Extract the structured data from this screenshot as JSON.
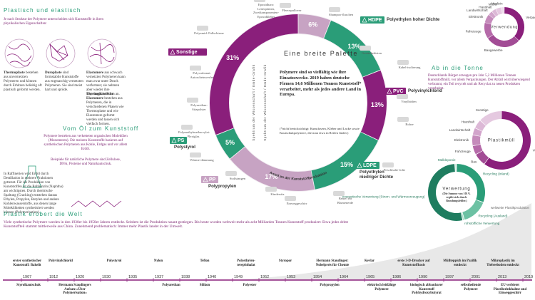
{
  "left": {
    "title": "Plastisch und elastisch",
    "intro": "Je nach Struktur der Polymere unterscheiden sich Kunststoffe in ihren physikalischen Eigenschaften:",
    "types": [
      {
        "name": "Thermoplaste",
        "text": "bestehen aus unvernetzten Polymeren und können durch Erhitzen beliebig oft plastisch geformt werden."
      },
      {
        "name": "Duroplaste",
        "text": "sind formstabile Kunststoffe aus engmaschig vernetzten Polymeren. Sie sind meist hart und spröde."
      },
      {
        "name": "Elastomere",
        "text": "aus schwach vernetzten Polymeren kann man zwar unter Druck verformen; sie nehmen aber wieder ihre ursprüngliche Form an."
      }
    ],
    "extra": {
      "name": "Thermoplastische Elastomere",
      "text": "bestehen aus Polymeren, die in verschiedenen Phasen wie Thermoplaste und wie Elastomere geformt werden und lassen sich vielfach formen."
    }
  },
  "oil": {
    "title": "Vom Öl zum Kunststoff",
    "text": "Polymere bestehen aus verketteten organischen Molekülen (Monomeren). Die meisten Kunststoffe basieren auf synthetischen Polymeren aus Kohle, Erdgas und vor allem Erdöl.",
    "text2": "Beispiele für natürliche Polymere sind Zellulose, DNA, Proteine und Naturkautschuk.",
    "refinery": "In Raffinerien wird Erdöl durch Destillation in mehrere Fraktionen getrennt. Für die Produktion von Kunststoffen ist die Rohbenzin (Naphtha) am wichtigsten. Durch thermische Spaltung (Cracking) entstehen daraus Ethylen, Propylen, Butylen und andere Kohlenwasserstoffe, aus denen lange Molekülketten synthetisiert werden können (Polymerisation)."
  },
  "products": [
    "Epoxidharz: Leiterplatten, Zweikomponenten-Epoxidkleber",
    "Fleecepullover",
    "Shampoo-flaschen",
    "Getränkekisten",
    "Kabel-isolierung",
    "Vinylböden",
    "Rohre",
    "Frischhalte-folie",
    "Beutel für Blumenerde",
    "Einweggeschirr",
    "Kindersitz",
    "Stoßstangen",
    "Wärme-dämmung",
    "Polymethylmethacrylat: Plexiglas",
    "Polyurethan: Sitzpolster",
    "Polycarbonat: Autoscheinwerfer",
    "Polyamid: Fallschirme"
  ],
  "credit": "Spektrum der Wissenschaft / Emde-Grafik",
  "chart_data": [
    {
      "type": "donut",
      "title": "Eine breite Palette",
      "text": "Polymere sind so vielfältig wie ihre Einsatzzwecke. 2019 haben deutsche Firmen 14,6 Millionen Tonnen Kunststoff* verarbeitet, mehr als jedes andere Land in Europa.",
      "footnote": "(*nicht berücksichtigt: Kunstfasern, Kleber und Lacke sowie Kautschukpolymere, die man etwa in Reifen findet.)",
      "axis_label": "Anteil an der Kunststoffproduktion",
      "categories": [
        null,
        "HDPE",
        "PVC",
        "LDPE",
        "PP",
        "PS",
        "Sonstige"
      ],
      "descriptions": [
        null,
        "Polyethylen hoher Dichte",
        "Polyvinylchlorid",
        "Polyethylen niedriger Dichte",
        "Polypropylen",
        "Polystyrol",
        null
      ],
      "values": [
        6,
        13,
        13,
        15,
        17,
        5,
        31
      ],
      "value_labels": [
        "6%",
        "13%",
        "13%",
        "15%",
        "17%",
        "5%",
        "31%"
      ],
      "colors": [
        "#c7a3c3",
        "#2a9d78",
        "#8a1f7b",
        "#2a9d78",
        "#c7a3c3",
        "#2a9d78",
        "#8a1f7b"
      ]
    },
    {
      "type": "donut",
      "title": "Verwendung",
      "categories": [
        "Verpackungen",
        "Baugewerbe",
        "Fahrzeuge",
        "Elektronik",
        "Landwirtschaft",
        "Haushalt",
        "Möbel",
        "Medizin"
      ],
      "values": [
        31,
        24,
        11,
        6,
        3,
        3,
        4,
        2
      ],
      "colors": [
        "#8a1f7b",
        "#a24c95",
        "#b56aa9",
        "#c58bbb",
        "#d2a4cb",
        "#dcb8d6",
        "#e5c9e0",
        "#eedaea"
      ]
    },
    {
      "type": "donut",
      "title": "Plastikmüll",
      "categories": [
        "Verpackungen",
        "Bau",
        "Fahrzeuge",
        "Elektronik",
        "Landwirtschaft",
        "Haushalt",
        "Sonstige"
      ],
      "values": [
        60,
        7,
        5,
        6,
        4,
        5,
        13
      ],
      "colors": [
        "#8a1f7b",
        "#a24c95",
        "#b56aa9",
        "#c58bbb",
        "#d2a4cb",
        "#dcb8d6",
        "#e5c9e0"
      ]
    },
    {
      "type": "donut",
      "title": "Verwertung",
      "note": "(Die Summe von 101% ergibt sich durch Rundungsfehler.)",
      "categories": [
        "Recycling (Inland)",
        "Recycling (Ausland)",
        "rohstoffliche Verwertung",
        "energetische Verwertung (Strom- und Wärmeerzeugung)",
        "Mülldeponie"
      ],
      "values": [
        31,
        15,
        1,
        53,
        1
      ],
      "colors": [
        "#2a9d78",
        "#6cc1a3",
        "#a8dcc8",
        "#1f7d60",
        "#cfeee2"
      ]
    }
  ],
  "bin": {
    "title": "Ab in die Tonne",
    "text": "Deutschlands Bürger erzeugen pro Jahr 5,2 Millionen Tonnen Kunststoffmüll, vor allem Verpackungen. Der Abfall wird überwiegend verbrannt, ein Teil recycelt und als Recyclat zu neuen Produkten verarbeitet."
  },
  "timeline": {
    "title": "Plastik erobert die Welt",
    "text": "Viele synthetische Polymere wurden in den 1930er bis 1950er Jahren entdeckt. Seitdem ist die Produktion rasant gestiegen. Bis heute wurden weltweit mehr als acht Milliarden Tonnen Kunststoff produziert: Etwa jedes dritte Kunststoffteil stammt mittlerweile aus China. Zunehmend problematisch: Immer mehr Plastik landet in der Umwelt.",
    "production_label": "weltweite Plastikproduktion",
    "years": [
      1907,
      1912,
      1920,
      1930,
      1935,
      1937,
      1938,
      1940,
      1949,
      1952,
      1953,
      1954,
      1964,
      1965,
      1986,
      1990,
      1997,
      2001,
      2013,
      2019
    ],
    "top": [
      "erster synthetischer Kunststoff: Bakelit",
      "Polyvinylchlorid",
      "Polystyrol",
      "Nylon",
      "Teflon",
      "Polyethylen-terephthalat",
      "Styropor",
      "Hermann Staudinger: Nobelpreis für Chemie",
      "Kevlar",
      "erste 3-D-Drucker auf Kunststoffbasis",
      "Müllteppich im Pazifik entdeckt",
      "Mikroplastik im Tiefseeboden entdeckt"
    ],
    "bottom": [
      "Styrolkautschuk",
      "Hermann Staudingers Aufsatz »Über Polymerisation«",
      "Polyurethan",
      "Silikon",
      "Polyester",
      "Polypropylen",
      "elektrisch leitfähige Polymere",
      "biologisch abbaubarer Kunststoff Polyhydroxybutyrat",
      "selbstheilende Polymere",
      "EU verbietet Plastiktrinkhalme und Einweggeschirr"
    ]
  }
}
